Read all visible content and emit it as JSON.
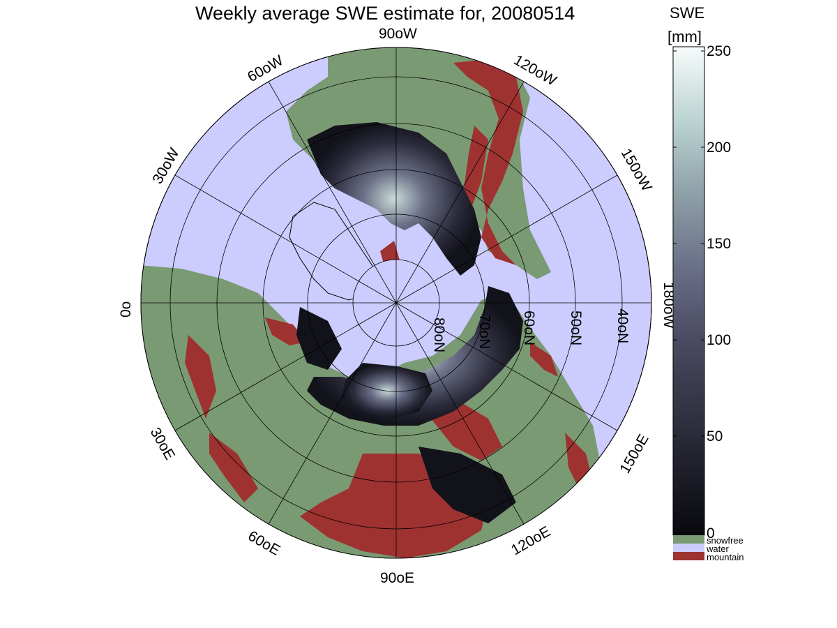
{
  "title": "Weekly average SWE estimate for, 20080514",
  "colorbar": {
    "title_line1": "SWE",
    "title_line2": "[mm]",
    "ticks": [
      "250",
      "200",
      "150",
      "100",
      "50",
      "0"
    ],
    "range": [
      0,
      250
    ],
    "categories": [
      {
        "label": "snowfree",
        "color": "#7a9a73"
      },
      {
        "label": "water",
        "color": "#ccccfe"
      },
      {
        "label": "mountain",
        "color": "#9e3231"
      }
    ]
  },
  "map": {
    "projection": "north-polar-stereographic",
    "longitude_labels": {
      "lon_90w": "90oW",
      "lon_60w": "60oW",
      "lon_120w": "120oW",
      "lon_30w": "30oW",
      "lon_150w": "150oW",
      "lon_0": "0o",
      "lon_180w": "180oW",
      "lon_30e": "30oE",
      "lon_150e": "150oE",
      "lon_60e": "60oE",
      "lon_120e": "120oE",
      "lon_90e": "90oE"
    },
    "latitude_labels": {
      "lat_80n": "80oN",
      "lat_70n": "70oN",
      "lat_60n": "60oN",
      "lat_50n": "50oN",
      "lat_40n": "40oN"
    },
    "colors": {
      "ocean": "#ccccfe",
      "land": "#7a9a73",
      "mountain": "#9e3231",
      "swe_low": "#08080e",
      "swe_high": "#f7fbfb"
    }
  }
}
